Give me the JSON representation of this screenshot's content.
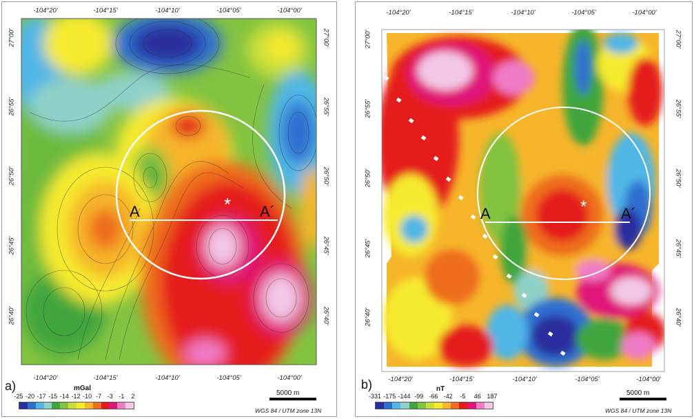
{
  "panel_a": {
    "label": "a)",
    "unit": "mGal",
    "colorbar_ticks": [
      "-25",
      "-20",
      "-17",
      "-15",
      "-14",
      "-12",
      "-10",
      "-7",
      "-3",
      "-1",
      "2"
    ],
    "colorbar_colors": [
      "#2a2f9e",
      "#2e6fd0",
      "#4fb6e6",
      "#8fd1c9",
      "#3fa63c",
      "#82c341",
      "#c9de3a",
      "#f6ea2d",
      "#f6b52a",
      "#ee6d1f",
      "#e41a1c",
      "#e0177a",
      "#f07cc6",
      "#f3c8e6"
    ],
    "lon_ticks_top": [
      "-104°20'",
      "-104°15'",
      "-104°10'",
      "-104°05'",
      "-104°00'"
    ],
    "lon_ticks_bottom": [
      "-104°20'",
      "-104°15'",
      "-104°10'",
      "-104°05'",
      "-104°00'"
    ],
    "lat_ticks_right": [
      "27°00'",
      "26°55'",
      "26°50'",
      "26°45'",
      "26°40'"
    ],
    "lat_ticks_left": [
      "27°00'",
      "26°55'",
      "26°50'",
      "26°45'",
      "26°40'"
    ],
    "profile_start": "A",
    "profile_end": "A´",
    "star": "*",
    "scale": "5000 m",
    "projection": "WGS 84 / UTM zone 13N"
  },
  "panel_b": {
    "label": "b)",
    "unit": "nT",
    "colorbar_ticks": [
      "-331",
      "-175",
      "-144",
      "-99",
      "-66",
      "-42",
      "-5",
      "46",
      "187"
    ],
    "colorbar_colors": [
      "#2a2f9e",
      "#2e6fd0",
      "#4fb6e6",
      "#8fd1c9",
      "#3fa63c",
      "#82c341",
      "#c9de3a",
      "#f6ea2d",
      "#f6b52a",
      "#ee6d1f",
      "#e41a1c",
      "#e0177a",
      "#f07cc6",
      "#f3c8e6"
    ],
    "lon_ticks_top": [
      "-104°20'",
      "-104°15'",
      "-104°10'",
      "-104°05'",
      "-104°00'"
    ],
    "lon_ticks_bottom": [
      "-104°20'",
      "-104°15'",
      "-104°10'",
      "-104°05'",
      "-104°00'"
    ],
    "lat_ticks_right": [
      "27°00'",
      "26°55'",
      "26°50'",
      "26°45'",
      "26°40'"
    ],
    "lat_ticks_left": [
      "27°00'",
      "26°55'",
      "26°50'",
      "26°45'",
      "26°40'"
    ],
    "profile_start": "A",
    "profile_end": "A´",
    "star": "*",
    "scale": "5000 m",
    "projection": "WGS 84 / UTM zone 13N"
  }
}
